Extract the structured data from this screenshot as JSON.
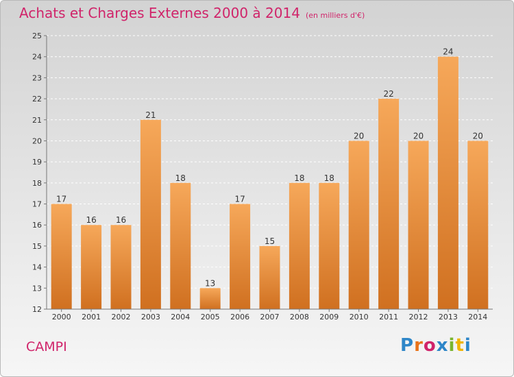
{
  "header": {
    "title": "Achats et Charges Externes 2000 à 2014",
    "unit": "(en milliers d'€)"
  },
  "footer": {
    "commune": "CAMPI",
    "logo_text": "Proxiti",
    "logo_colors": [
      "#2e86c8",
      "#e8731a",
      "#d0246a",
      "#2e86c8",
      "#7ab52d",
      "#f0b400",
      "#2e86c8"
    ]
  },
  "colors": {
    "accent": "#d0246a",
    "bar_top": "#f6a85a",
    "bar_bottom": "#d07020"
  },
  "chart_data": {
    "type": "bar",
    "categories": [
      "2000",
      "2001",
      "2002",
      "2003",
      "2004",
      "2005",
      "2006",
      "2007",
      "2008",
      "2009",
      "2010",
      "2011",
      "2012",
      "2013",
      "2014"
    ],
    "values": [
      17,
      16,
      16,
      21,
      18,
      13,
      17,
      15,
      18,
      18,
      20,
      22,
      20,
      24,
      20
    ],
    "title": "Achats et Charges Externes 2000 à 2014",
    "ylim": [
      12,
      25
    ],
    "yticks": [
      12,
      13,
      14,
      15,
      16,
      17,
      18,
      19,
      20,
      21,
      22,
      23,
      24,
      25
    ],
    "grid": true
  }
}
